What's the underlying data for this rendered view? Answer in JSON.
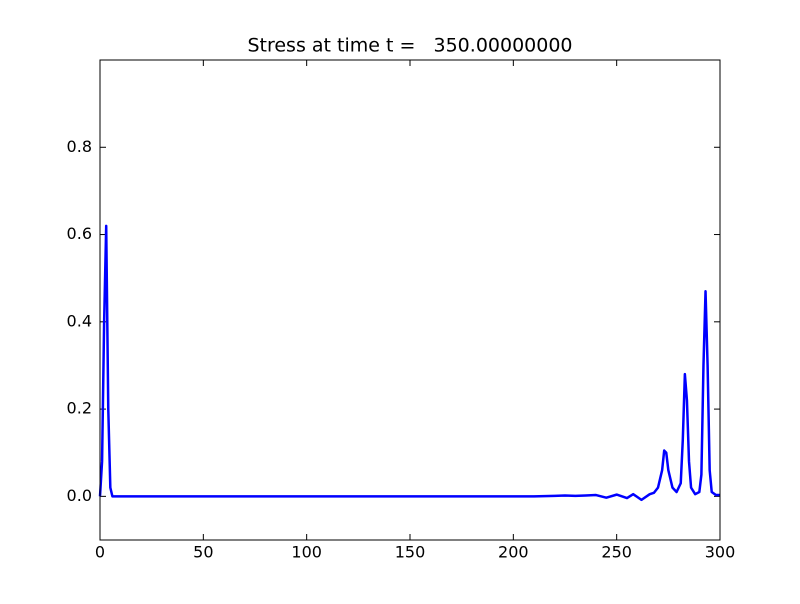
{
  "chart_data": {
    "type": "line",
    "title": "Stress at time t =   350.00000000",
    "x": [
      0,
      1,
      2,
      3,
      4,
      5,
      6,
      10,
      50,
      100,
      150,
      200,
      210,
      220,
      225,
      230,
      235,
      240,
      245,
      250,
      255,
      258,
      262,
      266,
      268,
      270,
      272,
      273,
      274,
      275,
      277,
      279,
      281,
      282,
      283,
      284,
      285,
      286,
      288,
      290,
      291,
      292,
      293,
      294,
      295,
      296,
      298,
      300
    ],
    "series": [
      {
        "color": "#0000ff",
        "values": [
          0,
          0.08,
          0.4,
          0.62,
          0.2,
          0.02,
          0,
          0,
          0,
          0,
          0,
          0,
          0,
          0.001,
          0.002,
          0.001,
          0.002,
          0.003,
          -0.003,
          0.004,
          -0.004,
          0.005,
          -0.008,
          0.005,
          0.008,
          0.02,
          0.06,
          0.105,
          0.1,
          0.06,
          0.02,
          0.01,
          0.03,
          0.13,
          0.28,
          0.22,
          0.08,
          0.02,
          0.005,
          0.01,
          0.05,
          0.3,
          0.47,
          0.3,
          0.06,
          0.01,
          0.003,
          0.003
        ]
      }
    ],
    "xlim": [
      0,
      300
    ],
    "xticks": [
      0,
      50,
      100,
      150,
      200,
      250,
      300
    ],
    "ylim": [
      -0.1,
      1.0
    ],
    "yticks": [
      {
        "value": 0,
        "label": "0.0"
      },
      0.2,
      0.4,
      0.6,
      0.8
    ]
  }
}
